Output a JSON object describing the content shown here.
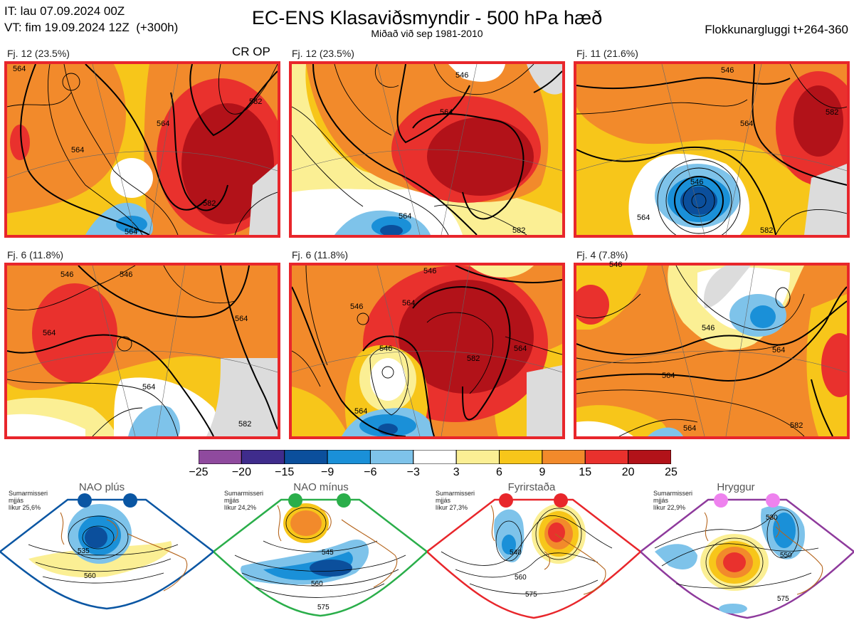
{
  "header": {
    "issue_time": "IT: lau 07.09.2024 00Z",
    "valid_time": "VT: fim 19.09.2024 12Z  (+300h)",
    "title": "EC-ENS Klasaviðsmyndir - 500 hPa hæð",
    "subtitle": "Miðað við sep 1981-2010",
    "cluster_window": "Flokkunargluggi t+264-360"
  },
  "panels": [
    {
      "label": "Fj. 12 (23.5%)",
      "tag": "CR OP",
      "contours": [
        "564",
        "564",
        "564",
        "582",
        "582",
        "564"
      ]
    },
    {
      "label": "Fj. 12 (23.5%)",
      "tag": "",
      "contours": [
        "546",
        "564",
        "564",
        "582"
      ]
    },
    {
      "label": "Fj. 11 (21.6%)",
      "tag": "",
      "contours": [
        "546",
        "564",
        "582",
        "546",
        "564",
        "582"
      ]
    },
    {
      "label": "Fj. 6 (11.8%)",
      "tag": "",
      "contours": [
        "546",
        "564",
        "546",
        "564",
        "564",
        "582"
      ]
    },
    {
      "label": "Fj. 6 (11.8%)",
      "tag": "",
      "contours": [
        "546",
        "546",
        "564",
        "546",
        "564",
        "582",
        "564"
      ]
    },
    {
      "label": "Fj. 4 (7.8%)",
      "tag": "",
      "contours": [
        "546",
        "546",
        "564",
        "564",
        "564",
        "582"
      ]
    }
  ],
  "colorbar": {
    "ticks": [
      "−25",
      "−20",
      "−15",
      "−9",
      "−6",
      "−3",
      "3",
      "6",
      "9",
      "15",
      "20",
      "25"
    ],
    "colors": [
      "#8f4a9e",
      "#3f2c8c",
      "#0b4f9c",
      "#1a90d8",
      "#7ec3ea",
      "#ffffff",
      "#fbef94",
      "#f7c61a",
      "#f28a2b",
      "#e9312d",
      "#b21219"
    ]
  },
  "regimes": [
    {
      "name": "NAO plús",
      "season": "Sumarmisseri",
      "width": "mjjás",
      "prob": "líkur 25,6%",
      "color": "#0a56a3",
      "contours": [
        "535",
        "560"
      ]
    },
    {
      "name": "NAO mínus",
      "season": "Sumarmisseri",
      "width": "mjjás",
      "prob": "líkur 24,2%",
      "color": "#2aae4a",
      "contours": [
        "545",
        "560",
        "575"
      ]
    },
    {
      "name": "Fyrirstaða",
      "season": "Sumarmisseri",
      "width": "mjjás",
      "prob": "líkur 27,3%",
      "color": "#e8262b",
      "contours": [
        "540",
        "560",
        "575"
      ]
    },
    {
      "name": "Hryggur",
      "season": "Sumarmisseri",
      "width": "mjjás",
      "prob": "líkur 22,9%",
      "color": "#8e3a9c",
      "contours": [
        "530",
        "550",
        "575"
      ]
    }
  ],
  "chart_data": {
    "type": "heatmap",
    "title": "EC-ENS Klasaviðsmyndir - 500 hPa hæð",
    "colorbar_ticks": [
      -25,
      -20,
      -15,
      -9,
      -6,
      -3,
      3,
      6,
      9,
      15,
      20,
      25
    ],
    "clusters": [
      {
        "label": "Fj. 12",
        "percent": 23.5,
        "tag": "CR OP"
      },
      {
        "label": "Fj. 12",
        "percent": 23.5
      },
      {
        "label": "Fj. 11",
        "percent": 21.6
      },
      {
        "label": "Fj. 6",
        "percent": 11.8
      },
      {
        "label": "Fj. 6",
        "percent": 11.8
      },
      {
        "label": "Fj. 4",
        "percent": 7.8
      }
    ],
    "regimes": [
      {
        "name": "NAO plús",
        "probability": 25.6
      },
      {
        "name": "NAO mínus",
        "probability": 24.2
      },
      {
        "name": "Fyrirstaða",
        "probability": 27.3
      },
      {
        "name": "Hryggur",
        "probability": 22.9
      }
    ]
  }
}
